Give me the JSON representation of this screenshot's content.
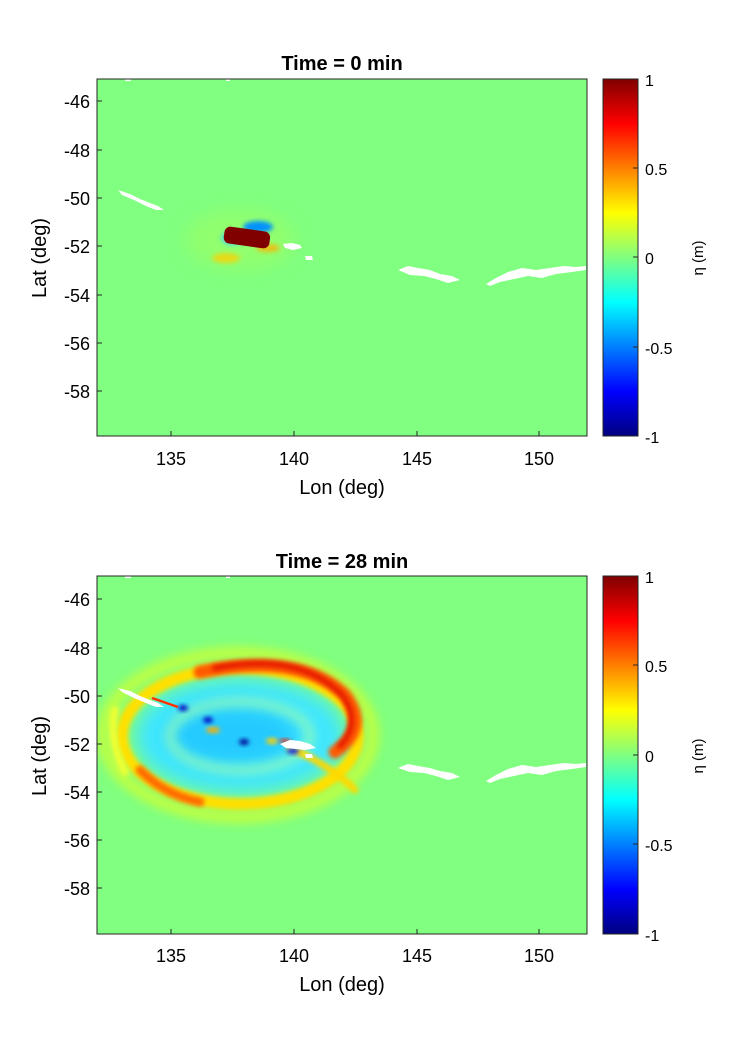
{
  "chart_data": [
    {
      "type": "heatmap",
      "title": "Time = 0 min",
      "xlabel": "Lon (deg)",
      "ylabel": "Lat (deg)",
      "xlim": [
        132,
        152
      ],
      "ylim": [
        -60,
        -45
      ],
      "xticks": [
        135,
        140,
        145,
        150
      ],
      "yticks": [
        -46,
        -48,
        -50,
        -52,
        -54,
        -56,
        -58
      ],
      "colorbar": {
        "label": "η (m)",
        "clim": [
          -1,
          1
        ],
        "ticks": [
          1,
          0.5,
          0,
          -0.5,
          -1
        ],
        "colormap": "jet"
      },
      "background_value": 0,
      "features": [
        {
          "kind": "source_uplift",
          "center": [
            138.1,
            -51.7
          ],
          "length_deg": 1.7,
          "width_deg": 0.7,
          "value": 1.0
        },
        {
          "kind": "trough",
          "center": [
            138.6,
            -51.2
          ],
          "value": -0.4
        },
        {
          "kind": "trough",
          "center": [
            136.6,
            -51.7
          ],
          "value": -0.2
        }
      ]
    },
    {
      "type": "heatmap",
      "title": "Time = 28 min",
      "xlabel": "Lon (deg)",
      "ylabel": "Lat (deg)",
      "xlim": [
        132,
        152
      ],
      "ylim": [
        -60,
        -45
      ],
      "xticks": [
        135,
        140,
        145,
        150
      ],
      "yticks": [
        -46,
        -48,
        -50,
        -52,
        -54,
        -56,
        -58
      ],
      "colorbar": {
        "label": "η (m)",
        "clim": [
          -1,
          1
        ],
        "ticks": [
          1,
          0.5,
          0,
          -0.5,
          -1
        ],
        "colormap": "jet"
      },
      "background_value": 0,
      "features": [
        {
          "kind": "wave_crest",
          "center": [
            138.1,
            -51.7
          ],
          "radius_deg": 4.5,
          "value": 0.55
        },
        {
          "kind": "wave_trough",
          "center": [
            138.1,
            -51.7
          ],
          "radius_deg": 3.3,
          "value": -0.4
        },
        {
          "kind": "wave_crest",
          "center": [
            138.1,
            -51.7
          ],
          "radius_deg": 5.4,
          "value": 0.3
        }
      ]
    }
  ],
  "colors": {
    "background": "#ffffff",
    "axis": "#262626",
    "land": "#ffffff",
    "zero_level": "#80ff80"
  }
}
